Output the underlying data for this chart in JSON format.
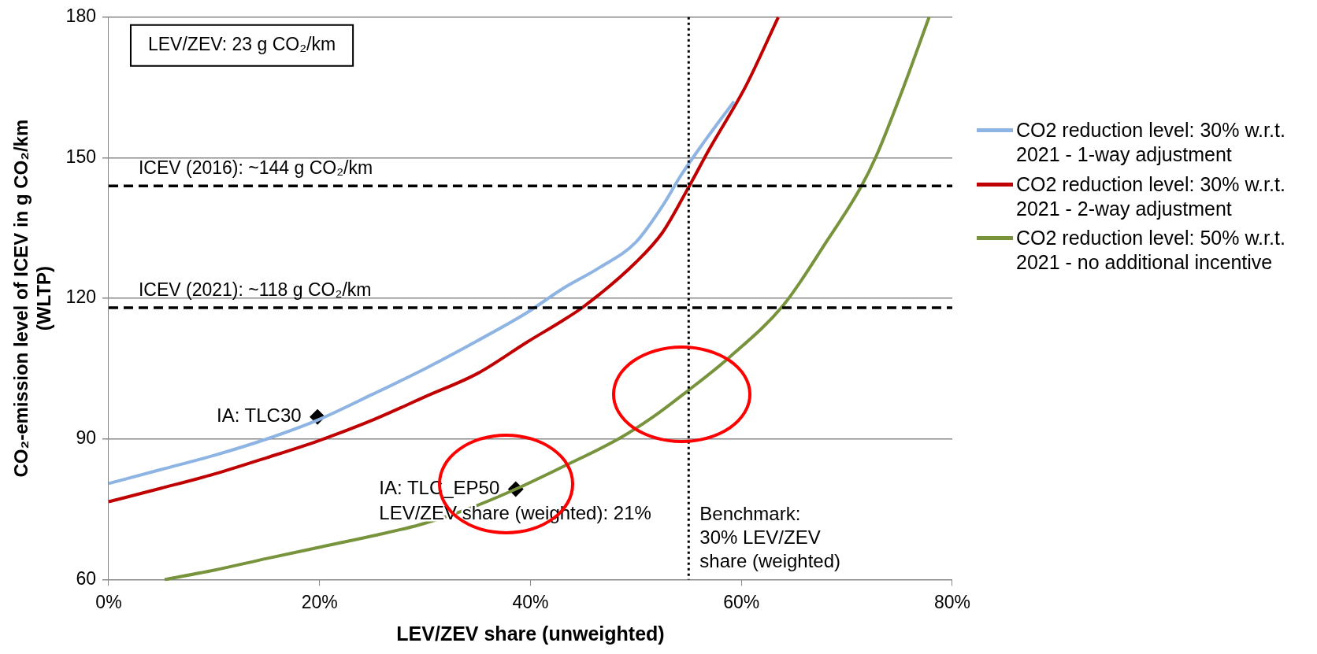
{
  "chart_data": {
    "type": "line",
    "xlabel": "LEV/ZEV share (unweighted)",
    "ylabel": "CO₂-emission level of ICEV in g CO₂/km\n(WLTP)",
    "xlim": [
      0,
      80
    ],
    "xticks": [
      {
        "value": 0,
        "label": "0%"
      },
      {
        "value": 20,
        "label": "20%"
      },
      {
        "value": 40,
        "label": "40%"
      },
      {
        "value": 60,
        "label": "60%"
      },
      {
        "value": 80,
        "label": "80%"
      }
    ],
    "ylim": [
      60,
      180
    ],
    "yticks": [
      60,
      90,
      120,
      150,
      180
    ],
    "grid": "y",
    "legend": "right",
    "series": [
      {
        "name": "CO2 reduction level: 30% w.r.t. 2021 - 1-way adjustment",
        "color": "#8db4e2",
        "marker": "none",
        "x": [
          0,
          5,
          10,
          15,
          19.8,
          25,
          30,
          35,
          39.7,
          43,
          46.5,
          50,
          52.6,
          54.2,
          56.5,
          59.3
        ],
        "values": [
          80.5,
          83.5,
          86.5,
          90,
          94,
          99.5,
          105,
          111,
          117,
          122,
          126.5,
          132,
          140,
          146,
          153.5,
          162
        ]
      },
      {
        "name": "CO2 reduction level: 30% w.r.t. 2021 - 2-way adjustment",
        "color": "#c00000",
        "marker": "none",
        "x": [
          0,
          5,
          10,
          15,
          20,
          25,
          30,
          35,
          39.7,
          43,
          44.9,
          50,
          52.5,
          54.7,
          57,
          60.4,
          63.5
        ],
        "values": [
          76.6,
          79.5,
          82.5,
          86,
          89.7,
          94,
          99,
          104,
          110.7,
          115.2,
          118,
          127.7,
          134,
          142.5,
          152,
          165.2,
          180
        ]
      },
      {
        "name": "CO2 reduction level: 50% w.r.t. 2021 - no additional incentive",
        "color": "#77933c",
        "marker": "none",
        "x": [
          5.3,
          10,
          15,
          20.2,
          25,
          29.5,
          34,
          38.6,
          43,
          48.5,
          51.5,
          54.7,
          58.8,
          64,
          68.1,
          71.3,
          72.8,
          75.4,
          77.8
        ],
        "values": [
          60,
          62,
          64.5,
          67,
          69.3,
          71.7,
          75,
          79.3,
          84,
          90.2,
          94.5,
          99.9,
          107.3,
          118.6,
          132.2,
          143.6,
          150.4,
          165.2,
          180
        ]
      },
      {
        "type": "scatter",
        "color": "#000000",
        "marker": "diamond",
        "x": [
          19.8
        ],
        "values": [
          94.7
        ]
      },
      {
        "type": "scatter",
        "color": "#000000",
        "marker": "diamond",
        "x": [
          38.6
        ],
        "values": [
          79.3
        ]
      }
    ],
    "ref_lines": [
      {
        "axis": "y",
        "value": 144,
        "label": "ICEV (2016): ~144 g CO₂/km",
        "color": "#000000",
        "line_style": "dashed"
      },
      {
        "axis": "y",
        "value": 118,
        "label": "ICEV (2021): ~118 g CO₂/km",
        "color": "#000000",
        "line_style": "dashed"
      },
      {
        "axis": "x",
        "value": 55,
        "color": "#000000",
        "line_style": "dotted"
      }
    ],
    "annotations": [
      "LEV/ZEV: 23 g CO₂/km",
      {
        "text": "IA: TLC30",
        "x": 19.8,
        "y": 94.7
      },
      {
        "text": "IA: TLC_EP50\nLEV/ZEV share (weighted): 21%",
        "x": 38.6,
        "y": 79.3
      },
      "Benchmark:\n30% LEV/ZEV\nshare (weighted)"
    ]
  }
}
